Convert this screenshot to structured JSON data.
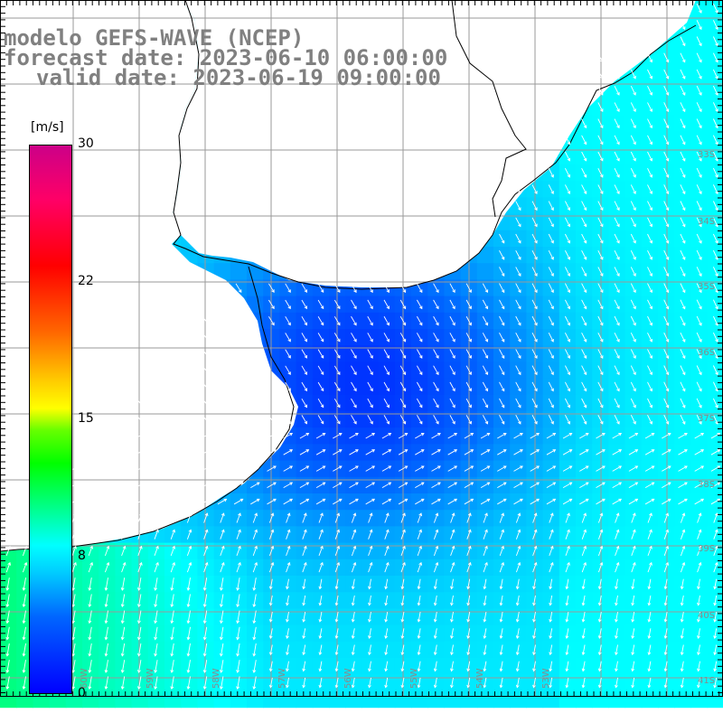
{
  "title": {
    "line1": "modelo GEFS-WAVE (NCEP)",
    "line2": "forecast date: 2023-06-10 06:00:00",
    "line3": "valid date: 2023-06-19 09:00:00"
  },
  "colorbar": {
    "unit": "[m/s]",
    "ticks": [
      "30",
      "22",
      "15",
      "8",
      "0"
    ],
    "tick_values": [
      30,
      22,
      15,
      8,
      0
    ],
    "min": 0,
    "max": 30,
    "colors": {
      "low": "#0000ff",
      "mid": "#00ffff",
      "green": "#00ff00",
      "yellow": "#ffff00",
      "orange": "#ff6600",
      "red": "#ff0000",
      "high": "#cc0088"
    }
  },
  "map": {
    "lat_labels": [
      "33S",
      "34S",
      "35S",
      "36S",
      "37S",
      "38S",
      "39S",
      "40S",
      "41S"
    ],
    "lon_labels": [
      "60W",
      "59W",
      "58W",
      "57W",
      "56W",
      "55W",
      "54W",
      "53W"
    ],
    "land_color": "#ffffff",
    "grid_color": "#999999",
    "coast_color": "#000000",
    "arrow_color": "#ffffff"
  }
}
